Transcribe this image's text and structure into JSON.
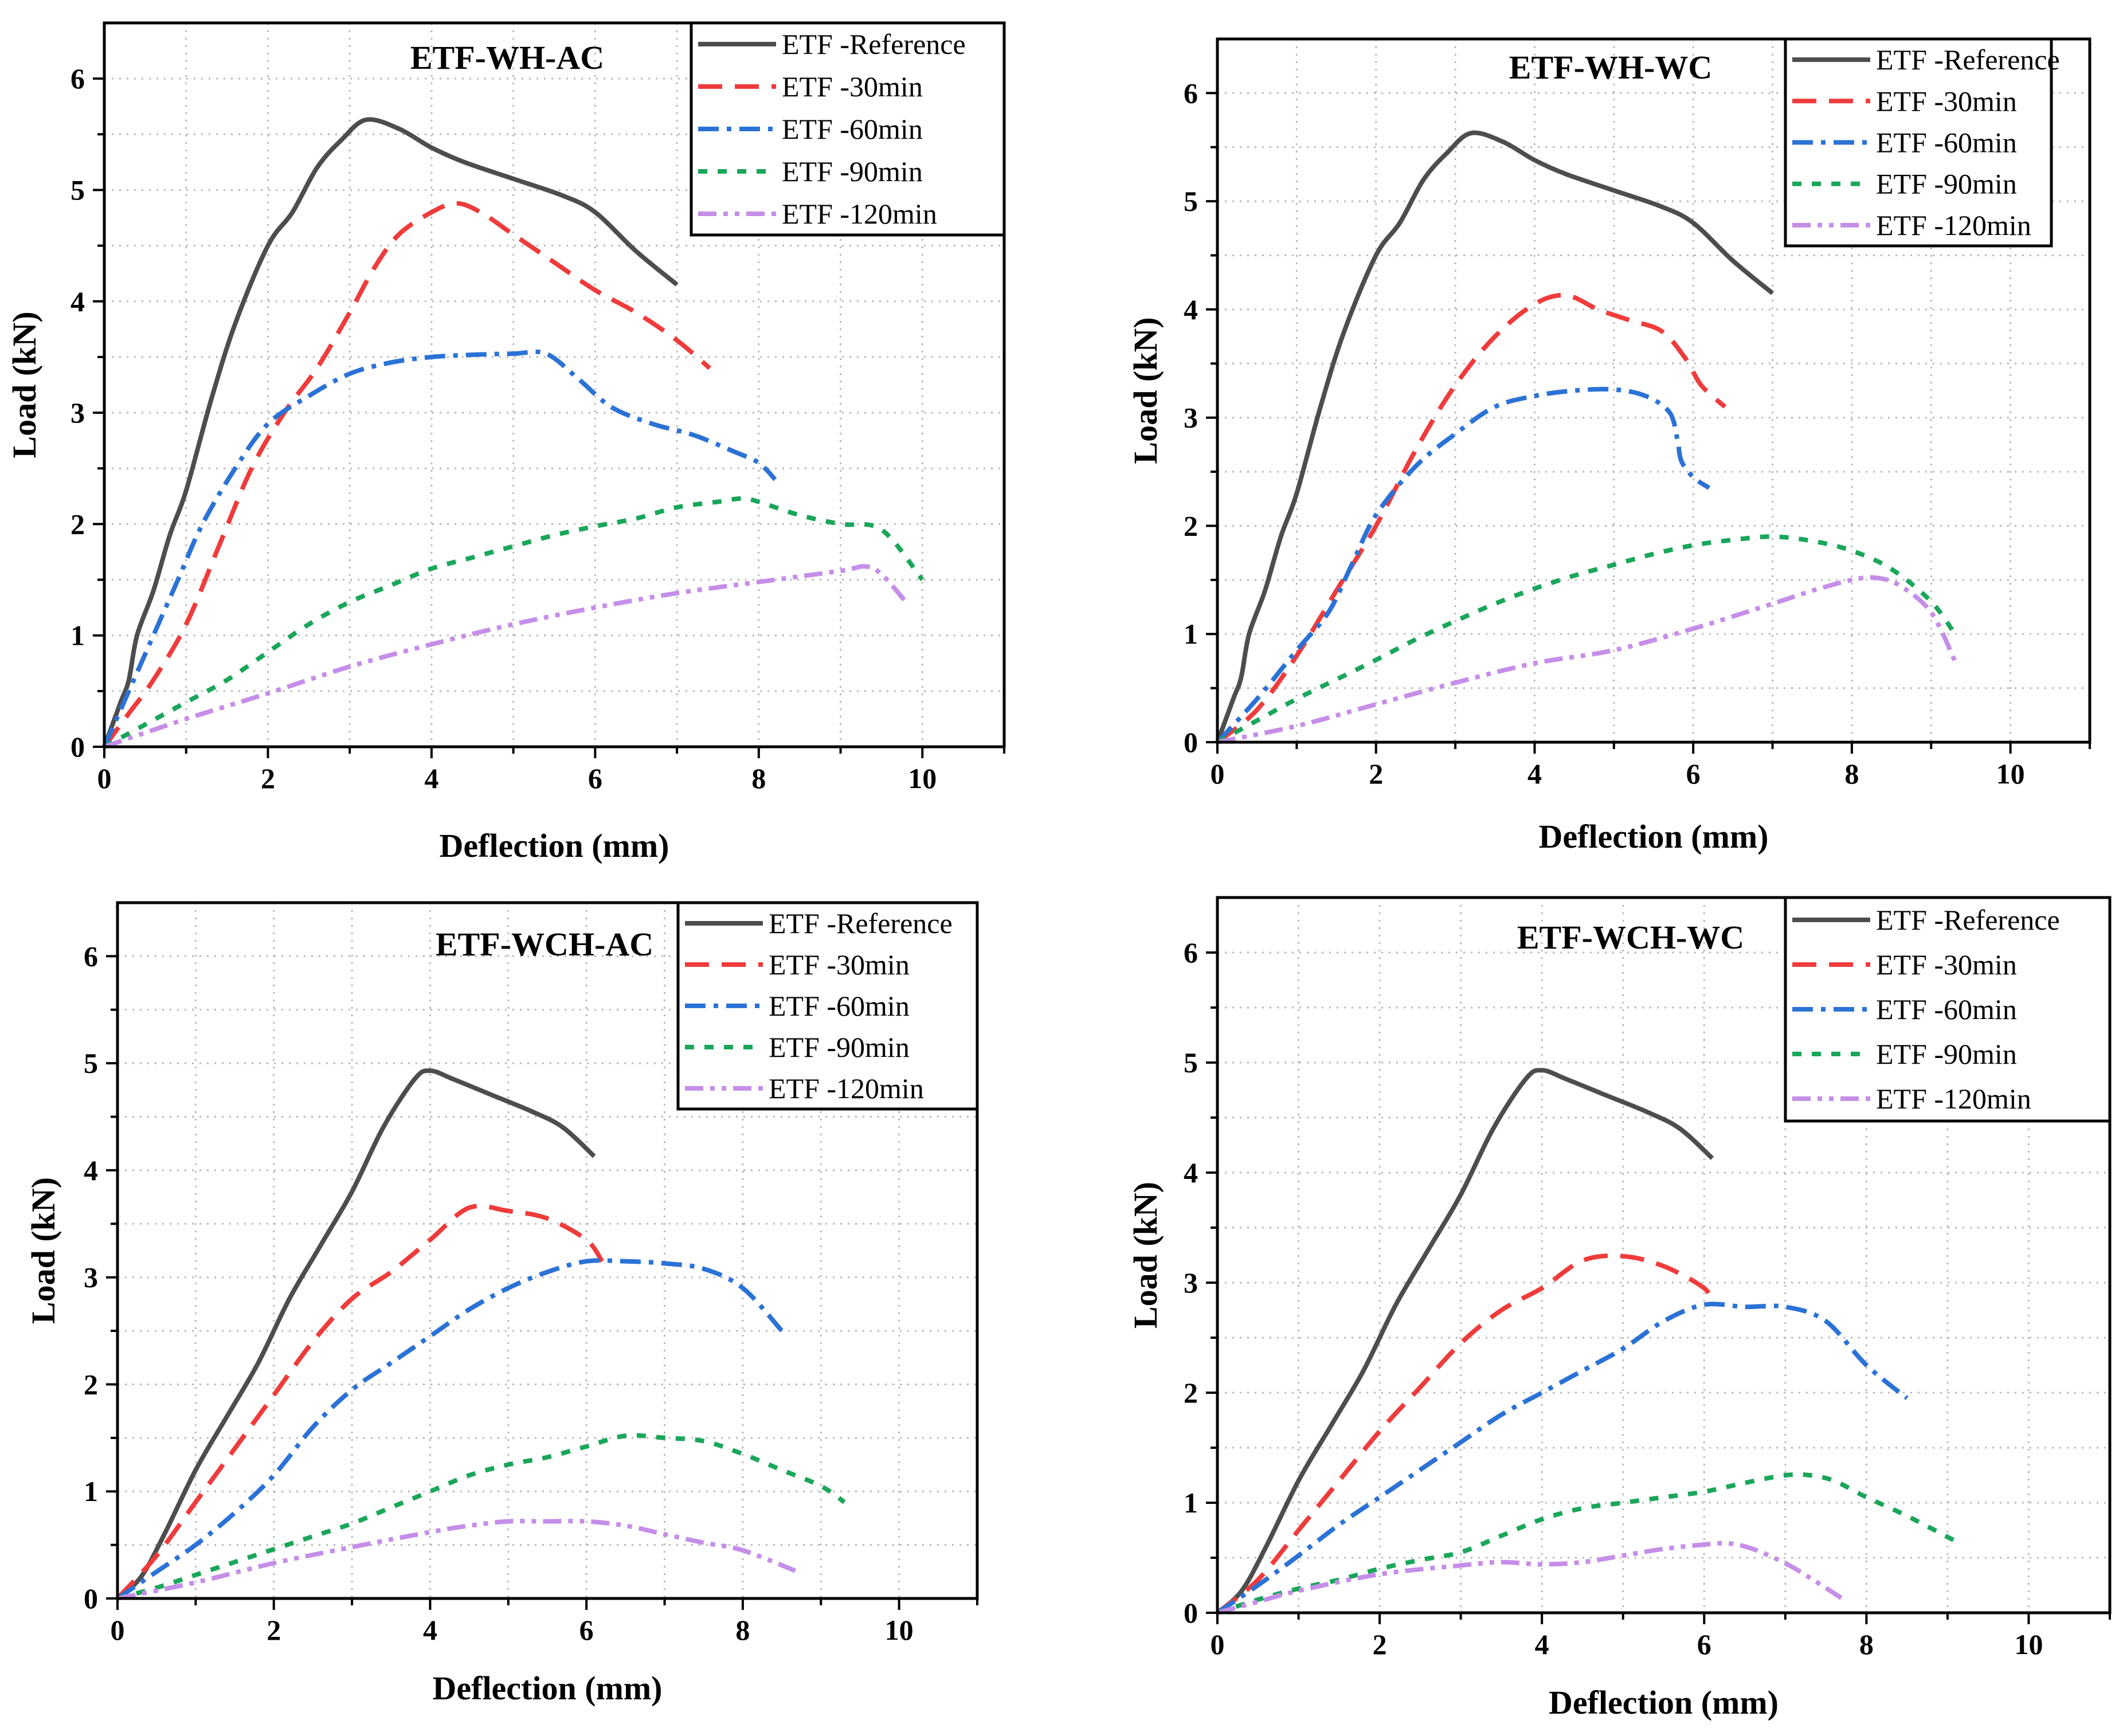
{
  "chart_data": [
    {
      "type": "line",
      "title": "ETF-WH-AC",
      "xlabel": "Deflection (mm)",
      "ylabel": "Load (kN)",
      "xlim": [
        0,
        11
      ],
      "ylim": [
        0,
        6.5
      ],
      "xticks": [
        "0",
        "2",
        "4",
        "6",
        "8",
        "10"
      ],
      "yticks": [
        "0",
        "1",
        "2",
        "3",
        "4",
        "5",
        "6"
      ],
      "grid": true,
      "legend_position": "top-right",
      "series": [
        {
          "name": "ETF -Reference",
          "x": [
            0,
            0.2,
            0.3,
            0.4,
            0.6,
            0.8,
            1.0,
            1.3,
            1.6,
            2.0,
            2.3,
            2.6,
            2.9,
            3.2,
            3.6,
            4.0,
            4.4,
            5.0,
            5.6,
            6.0,
            6.5,
            7.0
          ],
          "values": [
            0,
            0.4,
            0.6,
            1.0,
            1.4,
            1.9,
            2.3,
            3.1,
            3.8,
            4.5,
            4.8,
            5.2,
            5.45,
            5.63,
            5.55,
            5.38,
            5.25,
            5.1,
            4.95,
            4.8,
            4.45,
            4.15
          ]
        },
        {
          "name": "ETF -30min",
          "x": [
            0,
            0.3,
            0.6,
            1.0,
            1.4,
            1.8,
            2.2,
            2.6,
            3.0,
            3.3,
            3.6,
            4.0,
            4.3,
            4.6,
            5.0,
            5.5,
            6.0,
            6.5,
            7.0,
            7.4
          ],
          "values": [
            0,
            0.3,
            0.6,
            1.1,
            1.8,
            2.5,
            3.0,
            3.4,
            3.9,
            4.3,
            4.6,
            4.8,
            4.88,
            4.8,
            4.6,
            4.35,
            4.1,
            3.9,
            3.65,
            3.4
          ]
        },
        {
          "name": "ETF -60min",
          "x": [
            0,
            0.3,
            0.6,
            0.9,
            1.2,
            1.6,
            2.0,
            2.5,
            3.0,
            3.5,
            4.0,
            4.5,
            5.0,
            5.4,
            5.8,
            6.2,
            6.7,
            7.2,
            7.7,
            8.0,
            8.2
          ],
          "values": [
            0,
            0.5,
            1.0,
            1.5,
            2.0,
            2.5,
            2.9,
            3.15,
            3.35,
            3.45,
            3.5,
            3.52,
            3.53,
            3.53,
            3.3,
            3.05,
            2.9,
            2.8,
            2.65,
            2.55,
            2.4
          ]
        },
        {
          "name": "ETF -90min",
          "x": [
            0,
            0.5,
            1.0,
            1.5,
            2.0,
            2.5,
            3.0,
            3.5,
            4.0,
            4.5,
            5.0,
            5.5,
            6.0,
            6.5,
            7.0,
            7.5,
            7.8,
            8.0,
            8.5,
            9.0,
            9.5,
            10.0
          ],
          "values": [
            0,
            0.2,
            0.4,
            0.6,
            0.85,
            1.1,
            1.3,
            1.45,
            1.6,
            1.7,
            1.8,
            1.9,
            1.98,
            2.05,
            2.15,
            2.2,
            2.23,
            2.2,
            2.08,
            2.0,
            1.95,
            1.5
          ]
        },
        {
          "name": "ETF -120min",
          "x": [
            0,
            1,
            2,
            3,
            4,
            5,
            6,
            7,
            8,
            9,
            9.3,
            9.5,
            9.8
          ],
          "values": [
            0,
            0.25,
            0.48,
            0.72,
            0.92,
            1.1,
            1.25,
            1.38,
            1.48,
            1.58,
            1.62,
            1.55,
            1.3
          ]
        }
      ]
    },
    {
      "type": "line",
      "title": "ETF-WH-WC",
      "xlabel": "Deflection (mm)",
      "ylabel": "Load (kN)",
      "xlim": [
        0,
        11
      ],
      "ylim": [
        0,
        6.5
      ],
      "xticks": [
        "0",
        "2",
        "4",
        "6",
        "8",
        "10"
      ],
      "yticks": [
        "0",
        "1",
        "2",
        "3",
        "4",
        "5",
        "6"
      ],
      "grid": true,
      "legend_position": "top-right",
      "series": [
        {
          "name": "ETF -Reference",
          "x": [
            0,
            0.2,
            0.3,
            0.4,
            0.6,
            0.8,
            1.0,
            1.3,
            1.6,
            2.0,
            2.3,
            2.6,
            2.9,
            3.2,
            3.6,
            4.0,
            4.4,
            5.0,
            5.6,
            6.0,
            6.5,
            7.0
          ],
          "values": [
            0,
            0.4,
            0.6,
            1.0,
            1.4,
            1.9,
            2.3,
            3.1,
            3.8,
            4.5,
            4.8,
            5.2,
            5.45,
            5.63,
            5.55,
            5.38,
            5.25,
            5.1,
            4.95,
            4.8,
            4.45,
            4.15
          ]
        },
        {
          "name": "ETF -30min",
          "x": [
            0,
            0.5,
            1.0,
            1.5,
            2.0,
            2.5,
            3.0,
            3.5,
            4.0,
            4.4,
            4.8,
            5.2,
            5.6,
            5.9,
            6.1,
            6.4
          ],
          "values": [
            0,
            0.3,
            0.8,
            1.4,
            2.0,
            2.7,
            3.3,
            3.75,
            4.05,
            4.13,
            4.0,
            3.9,
            3.8,
            3.55,
            3.3,
            3.1
          ]
        },
        {
          "name": "ETF -60min",
          "x": [
            0,
            0.5,
            1.0,
            1.4,
            1.7,
            2.0,
            2.5,
            3.0,
            3.5,
            4.0,
            4.5,
            5.0,
            5.4,
            5.7,
            5.8,
            5.85,
            6.0,
            6.2
          ],
          "values": [
            0,
            0.4,
            0.85,
            1.2,
            1.65,
            2.1,
            2.55,
            2.85,
            3.1,
            3.2,
            3.25,
            3.26,
            3.2,
            3.05,
            2.8,
            2.6,
            2.45,
            2.35
          ]
        },
        {
          "name": "ETF -90min",
          "x": [
            0,
            0.5,
            1.0,
            1.5,
            2.0,
            2.5,
            3.0,
            3.5,
            4.0,
            4.5,
            5.0,
            5.5,
            6.0,
            6.5,
            7.0,
            7.5,
            8.0,
            8.5,
            9.0,
            9.3
          ],
          "values": [
            0,
            0.2,
            0.4,
            0.58,
            0.76,
            0.95,
            1.12,
            1.28,
            1.42,
            1.54,
            1.64,
            1.74,
            1.82,
            1.87,
            1.9,
            1.86,
            1.77,
            1.6,
            1.3,
            1.0
          ]
        },
        {
          "name": "ETF -120min",
          "x": [
            0,
            1,
            2,
            3,
            4,
            5,
            6,
            7,
            7.5,
            8.0,
            8.3,
            8.6,
            9.0,
            9.3
          ],
          "values": [
            0,
            0.15,
            0.35,
            0.55,
            0.73,
            0.85,
            1.05,
            1.28,
            1.4,
            1.5,
            1.52,
            1.45,
            1.2,
            0.75
          ]
        }
      ]
    },
    {
      "type": "line",
      "title": "ETF-WCH-AC",
      "xlabel": "Deflection (mm)",
      "ylabel": "Load (kN)",
      "xlim": [
        0,
        11
      ],
      "ylim": [
        0,
        6.5
      ],
      "xticks": [
        "0",
        "2",
        "4",
        "6",
        "8",
        "10"
      ],
      "yticks": [
        "0",
        "1",
        "2",
        "3",
        "4",
        "5",
        "6"
      ],
      "grid": true,
      "legend_position": "top-right",
      "series": [
        {
          "name": "ETF -Reference",
          "x": [
            0,
            0.3,
            0.6,
            1.0,
            1.4,
            1.8,
            2.2,
            2.6,
            3.0,
            3.4,
            3.8,
            4.0,
            4.3,
            4.8,
            5.3,
            5.7,
            6.1
          ],
          "values": [
            0,
            0.2,
            0.6,
            1.2,
            1.7,
            2.2,
            2.8,
            3.3,
            3.8,
            4.4,
            4.85,
            4.93,
            4.85,
            4.7,
            4.55,
            4.4,
            4.13
          ]
        },
        {
          "name": "ETF -30min",
          "x": [
            0,
            0.5,
            1.0,
            1.5,
            2.0,
            2.5,
            3.0,
            3.5,
            4.0,
            4.5,
            5.0,
            5.5,
            6.0,
            6.2
          ],
          "values": [
            0,
            0.4,
            0.9,
            1.4,
            1.9,
            2.4,
            2.8,
            3.05,
            3.35,
            3.65,
            3.62,
            3.55,
            3.35,
            3.15
          ]
        },
        {
          "name": "ETF -60min",
          "x": [
            0,
            0.5,
            1.0,
            1.5,
            2.0,
            2.5,
            3.0,
            3.5,
            4.0,
            4.5,
            5.0,
            5.5,
            6.0,
            6.5,
            7.0,
            7.5,
            8.0,
            8.5
          ],
          "values": [
            0,
            0.25,
            0.5,
            0.8,
            1.15,
            1.6,
            1.95,
            2.2,
            2.45,
            2.7,
            2.9,
            3.05,
            3.15,
            3.15,
            3.13,
            3.08,
            2.9,
            2.5
          ]
        },
        {
          "name": "ETF -90min",
          "x": [
            0,
            0.5,
            1.0,
            1.5,
            2.0,
            2.5,
            3.0,
            3.5,
            4.0,
            4.5,
            5.0,
            5.5,
            6.0,
            6.5,
            7.0,
            7.5,
            8.0,
            8.5,
            9.0,
            9.3
          ],
          "values": [
            0,
            0.1,
            0.22,
            0.34,
            0.46,
            0.58,
            0.7,
            0.85,
            1.0,
            1.15,
            1.25,
            1.32,
            1.42,
            1.52,
            1.5,
            1.47,
            1.35,
            1.2,
            1.05,
            0.9
          ]
        },
        {
          "name": "ETF -120min",
          "x": [
            0,
            1,
            2,
            3,
            4,
            4.5,
            5.0,
            5.5,
            6.0,
            6.5,
            7.0,
            7.5,
            8.0,
            8.7
          ],
          "values": [
            0,
            0.15,
            0.33,
            0.48,
            0.62,
            0.68,
            0.72,
            0.72,
            0.72,
            0.68,
            0.6,
            0.52,
            0.45,
            0.25
          ]
        }
      ]
    },
    {
      "type": "line",
      "title": "ETF-WCH-WC",
      "xlabel": "Deflection (mm)",
      "ylabel": "Load (kN)",
      "xlim": [
        0,
        11
      ],
      "ylim": [
        0,
        6.5
      ],
      "xticks": [
        "0",
        "2",
        "4",
        "6",
        "8",
        "10"
      ],
      "yticks": [
        "0",
        "1",
        "2",
        "3",
        "4",
        "5",
        "6"
      ],
      "grid": true,
      "legend_position": "top-right",
      "series": [
        {
          "name": "ETF -Reference",
          "x": [
            0,
            0.3,
            0.6,
            1.0,
            1.4,
            1.8,
            2.2,
            2.6,
            3.0,
            3.4,
            3.8,
            4.0,
            4.3,
            4.8,
            5.3,
            5.7,
            6.1
          ],
          "values": [
            0,
            0.2,
            0.6,
            1.2,
            1.7,
            2.2,
            2.8,
            3.3,
            3.8,
            4.4,
            4.85,
            4.93,
            4.85,
            4.7,
            4.55,
            4.4,
            4.13
          ]
        },
        {
          "name": "ETF -30min",
          "x": [
            0,
            0.5,
            1.0,
            1.5,
            2.0,
            2.5,
            3.0,
            3.5,
            4.0,
            4.5,
            5.0,
            5.5,
            6.0,
            6.1
          ],
          "values": [
            0,
            0.3,
            0.75,
            1.2,
            1.65,
            2.05,
            2.45,
            2.75,
            2.95,
            3.2,
            3.24,
            3.15,
            2.95,
            2.8
          ]
        },
        {
          "name": "ETF -60min",
          "x": [
            0,
            0.5,
            1.0,
            1.5,
            2.0,
            2.5,
            3.0,
            3.5,
            4.0,
            4.5,
            5.0,
            5.5,
            6.0,
            6.5,
            7.0,
            7.5,
            8.0,
            8.5
          ],
          "values": [
            0,
            0.25,
            0.52,
            0.8,
            1.05,
            1.3,
            1.55,
            1.8,
            2.0,
            2.2,
            2.4,
            2.65,
            2.8,
            2.78,
            2.78,
            2.65,
            2.25,
            1.95
          ]
        },
        {
          "name": "ETF -90min",
          "x": [
            0,
            0.5,
            1.0,
            1.5,
            2.0,
            2.5,
            3.0,
            3.5,
            4.0,
            4.5,
            5.0,
            5.5,
            6.0,
            6.5,
            7.0,
            7.3,
            7.6,
            8.0,
            8.5,
            9.1
          ],
          "values": [
            0,
            0.12,
            0.22,
            0.3,
            0.4,
            0.48,
            0.55,
            0.7,
            0.85,
            0.95,
            1.0,
            1.05,
            1.1,
            1.18,
            1.25,
            1.25,
            1.2,
            1.05,
            0.88,
            0.65
          ]
        },
        {
          "name": "ETF -120min",
          "x": [
            0,
            0.5,
            1.0,
            2.0,
            3.0,
            3.5,
            4.0,
            4.5,
            5.0,
            5.5,
            6.0,
            6.3,
            6.6,
            7.0,
            7.3,
            7.7
          ],
          "values": [
            0,
            0.1,
            0.2,
            0.35,
            0.43,
            0.46,
            0.44,
            0.46,
            0.52,
            0.58,
            0.62,
            0.63,
            0.58,
            0.45,
            0.32,
            0.13
          ]
        }
      ]
    }
  ],
  "series_colors": [
    "#4d4d4d",
    "#ef3b3b",
    "#2b72d6",
    "#1aa65a",
    "#c58ee8"
  ]
}
